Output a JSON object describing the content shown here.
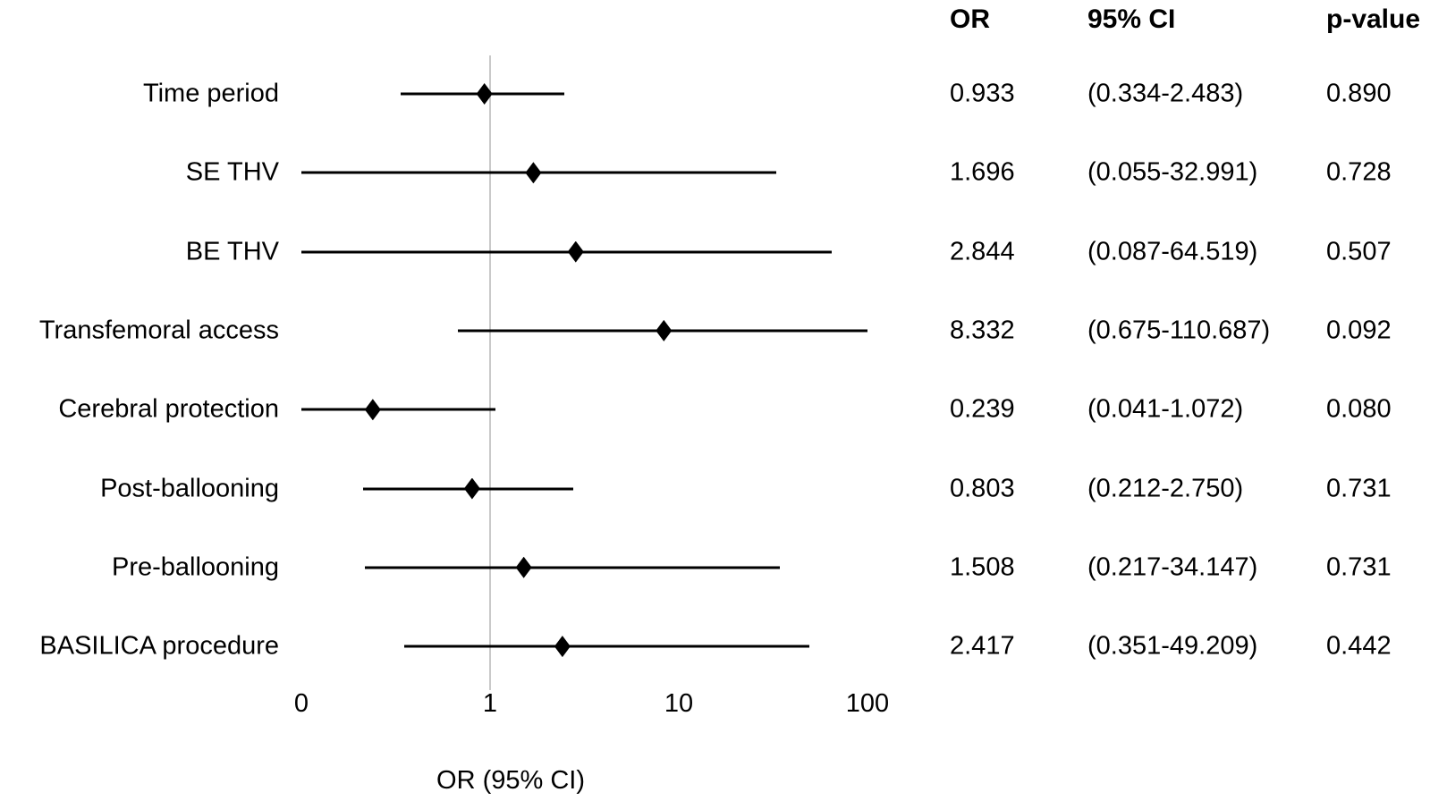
{
  "chart_data": {
    "type": "scatter",
    "subtype": "forest-plot",
    "title": "",
    "xlabel": "OR (95% CI)",
    "x_scale": "log10",
    "x_axis": {
      "min": 0.1,
      "max": 100,
      "reference_line_value": 1,
      "grid": false,
      "ticks": [
        {
          "value": 0.1,
          "label": "0"
        },
        {
          "value": 1,
          "label": "1"
        },
        {
          "value": 10,
          "label": "10"
        },
        {
          "value": 100,
          "label": "100"
        }
      ]
    },
    "table_headers": {
      "or": "OR",
      "ci": "95% CI",
      "p": "p-value"
    },
    "rows": [
      {
        "label": "Time period",
        "or": 0.933,
        "ci_low": 0.334,
        "ci_high": 2.483,
        "or_text": "0.933",
        "ci_text": "(0.334-2.483)",
        "p_text": "0.890"
      },
      {
        "label": "SE THV",
        "or": 1.696,
        "ci_low": 0.055,
        "ci_high": 32.991,
        "or_text": "1.696",
        "ci_text": "(0.055-32.991)",
        "p_text": "0.728"
      },
      {
        "label": "BE THV",
        "or": 2.844,
        "ci_low": 0.087,
        "ci_high": 64.519,
        "or_text": "2.844",
        "ci_text": "(0.087-64.519)",
        "p_text": "0.507"
      },
      {
        "label": "Transfemoral access",
        "or": 8.332,
        "ci_low": 0.675,
        "ci_high": 110.687,
        "or_text": "8.332",
        "ci_text": "(0.675-110.687)",
        "p_text": "0.092"
      },
      {
        "label": "Cerebral protection",
        "or": 0.239,
        "ci_low": 0.041,
        "ci_high": 1.072,
        "or_text": "0.239",
        "ci_text": "(0.041-1.072)",
        "p_text": "0.080"
      },
      {
        "label": "Post-ballooning",
        "or": 0.803,
        "ci_low": 0.212,
        "ci_high": 2.75,
        "or_text": "0.803",
        "ci_text": "(0.212-2.750)",
        "p_text": "0.731"
      },
      {
        "label": "Pre-ballooning",
        "or": 1.508,
        "ci_low": 0.217,
        "ci_high": 34.147,
        "or_text": "1.508",
        "ci_text": "(0.217-34.147)",
        "p_text": "0.731"
      },
      {
        "label": "BASILICA procedure",
        "or": 2.417,
        "ci_low": 0.351,
        "ci_high": 49.209,
        "or_text": "2.417",
        "ci_text": "(0.351-49.209)",
        "p_text": "0.442"
      }
    ],
    "legend": null
  },
  "colors": {
    "marker": "#000000",
    "ci_line": "#000000",
    "reference_line": "#c9c9c9",
    "text": "#000000",
    "background": "#ffffff"
  }
}
